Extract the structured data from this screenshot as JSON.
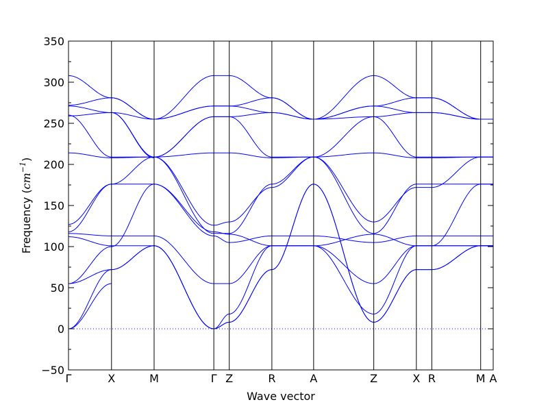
{
  "chart_data": {
    "type": "line",
    "title": "",
    "xlabel": "Wave vector",
    "ylabel_prefix": "Frequency (",
    "ylabel_unit": "cm",
    "ylabel_exp": "−1",
    "ylabel_suffix": ")",
    "ylim": [
      -50,
      350
    ],
    "yticks": [
      -50,
      0,
      50,
      100,
      150,
      200,
      250,
      300,
      350
    ],
    "ytick_labels": [
      "−50",
      "0",
      "50",
      "100",
      "150",
      "200",
      "250",
      "300",
      "350"
    ],
    "grid": false,
    "line_color": "#0000ff",
    "zero_line_color": "#0000ff",
    "xlim": [
      0,
      10.17
    ],
    "high_symmetry_points": [
      {
        "label": "Γ",
        "x": 0.0
      },
      {
        "label": "X",
        "x": 1.03
      },
      {
        "label": "M",
        "x": 2.05
      },
      {
        "label": "Γ",
        "x": 3.48
      },
      {
        "label": "Z",
        "x": 3.85
      },
      {
        "label": "R",
        "x": 4.87
      },
      {
        "label": "A",
        "x": 5.87
      },
      {
        "label": "Z",
        "x": 7.31
      },
      {
        "label": "X",
        "x": 8.33
      },
      {
        "label": "R",
        "x": 8.7
      },
      {
        "label": "M",
        "x": 9.87
      },
      {
        "label": "A",
        "x": 10.17
      }
    ],
    "segments": [
      {
        "from": "Γ",
        "to": "X",
        "x0": 0.0,
        "x1": 1.03,
        "bands": [
          [
            0,
            72
          ],
          [
            0,
            55
          ],
          [
            55,
            72
          ],
          [
            55,
            100
          ],
          [
            112,
            101
          ],
          [
            116,
            113
          ],
          [
            118,
            176
          ],
          [
            127,
            176
          ],
          [
            214,
            208
          ],
          [
            259,
            263
          ],
          [
            260,
            209
          ],
          [
            271,
            263
          ],
          [
            272,
            281
          ],
          [
            308,
            281
          ]
        ]
      },
      {
        "from": "X",
        "to": "M",
        "x0": 1.03,
        "x1": 2.05,
        "bands": [
          [
            72,
            101
          ],
          [
            72,
            101
          ],
          [
            100,
            176
          ],
          [
            101,
            101
          ],
          [
            113,
            113
          ],
          [
            176,
            176
          ],
          [
            176,
            209
          ],
          [
            208,
            209
          ],
          [
            209,
            209
          ],
          [
            263,
            209
          ],
          [
            263,
            208
          ],
          [
            263,
            255
          ],
          [
            281,
            255
          ],
          [
            281,
            255
          ]
        ]
      },
      {
        "from": "M",
        "to": "Γ",
        "x0": 2.05,
        "x1": 3.48,
        "bands": [
          [
            101,
            0
          ],
          [
            101,
            0
          ],
          [
            101,
            0
          ],
          [
            113,
            55
          ],
          [
            176,
            113
          ],
          [
            176,
            118
          ],
          [
            209,
            116
          ],
          [
            209,
            126
          ],
          [
            209,
            214
          ],
          [
            209,
            258
          ],
          [
            209,
            258
          ],
          [
            255,
            271
          ],
          [
            255,
            271
          ],
          [
            255,
            308
          ]
        ]
      },
      {
        "from": "Γ",
        "to": "Z",
        "x0": 3.48,
        "x1": 3.85,
        "bands": [
          [
            0,
            8
          ],
          [
            0,
            8
          ],
          [
            0,
            18
          ],
          [
            55,
            55
          ],
          [
            113,
            105
          ],
          [
            118,
            115
          ],
          [
            116,
            116
          ],
          [
            126,
            130
          ],
          [
            214,
            214
          ],
          [
            258,
            258
          ],
          [
            258,
            258
          ],
          [
            271,
            271
          ],
          [
            271,
            271
          ],
          [
            308,
            308
          ]
        ]
      },
      {
        "from": "Z",
        "to": "R",
        "x0": 3.85,
        "x1": 4.87,
        "bands": [
          [
            8,
            72
          ],
          [
            8,
            72
          ],
          [
            18,
            101
          ],
          [
            55,
            101
          ],
          [
            105,
            113
          ],
          [
            115,
            101
          ],
          [
            116,
            176
          ],
          [
            130,
            172
          ],
          [
            214,
            208
          ],
          [
            258,
            209
          ],
          [
            258,
            263
          ],
          [
            271,
            263
          ],
          [
            271,
            281
          ],
          [
            308,
            281
          ]
        ]
      },
      {
        "from": "R",
        "to": "A",
        "x0": 4.87,
        "x1": 5.87,
        "bands": [
          [
            72,
            176
          ],
          [
            72,
            176
          ],
          [
            101,
            101
          ],
          [
            101,
            101
          ],
          [
            113,
            113
          ],
          [
            101,
            101
          ],
          [
            176,
            209
          ],
          [
            172,
            209
          ],
          [
            208,
            209
          ],
          [
            209,
            209
          ],
          [
            263,
            255
          ],
          [
            263,
            255
          ],
          [
            281,
            255
          ],
          [
            281,
            255
          ]
        ]
      },
      {
        "from": "A",
        "to": "Z",
        "x0": 5.87,
        "x1": 7.31,
        "bands": [
          [
            176,
            8
          ],
          [
            176,
            8
          ],
          [
            101,
            18
          ],
          [
            101,
            55
          ],
          [
            113,
            105
          ],
          [
            101,
            115
          ],
          [
            209,
            116
          ],
          [
            209,
            130
          ],
          [
            209,
            214
          ],
          [
            209,
            258
          ],
          [
            255,
            258
          ],
          [
            255,
            271
          ],
          [
            255,
            271
          ],
          [
            255,
            308
          ]
        ]
      },
      {
        "from": "Z",
        "to": "X",
        "x0": 7.31,
        "x1": 8.33,
        "bands": [
          [
            8,
            72
          ],
          [
            8,
            72
          ],
          [
            18,
            101
          ],
          [
            55,
            101
          ],
          [
            105,
            113
          ],
          [
            115,
            101
          ],
          [
            116,
            176
          ],
          [
            130,
            172
          ],
          [
            214,
            208
          ],
          [
            258,
            209
          ],
          [
            258,
            263
          ],
          [
            271,
            263
          ],
          [
            271,
            281
          ],
          [
            308,
            281
          ]
        ]
      },
      {
        "from": "X",
        "to": "R",
        "x0": 8.33,
        "x1": 8.7,
        "bands": [
          [
            72,
            72
          ],
          [
            72,
            72
          ],
          [
            101,
            101
          ],
          [
            101,
            101
          ],
          [
            113,
            113
          ],
          [
            101,
            101
          ],
          [
            176,
            176
          ],
          [
            172,
            172
          ],
          [
            208,
            208
          ],
          [
            209,
            209
          ],
          [
            263,
            263
          ],
          [
            263,
            263
          ],
          [
            281,
            281
          ],
          [
            281,
            281
          ]
        ]
      },
      {
        "from": "R",
        "to": "M",
        "x0": 8.7,
        "x1": 9.87,
        "bands": [
          [
            72,
            101
          ],
          [
            72,
            101
          ],
          [
            101,
            176
          ],
          [
            101,
            101
          ],
          [
            113,
            113
          ],
          [
            101,
            101
          ],
          [
            176,
            176
          ],
          [
            172,
            209
          ],
          [
            208,
            209
          ],
          [
            209,
            209
          ],
          [
            263,
            255
          ],
          [
            263,
            255
          ],
          [
            281,
            255
          ],
          [
            281,
            255
          ]
        ]
      },
      {
        "from": "M",
        "to": "A",
        "x0": 9.87,
        "x1": 10.17,
        "bands": [
          [
            101,
            101
          ],
          [
            101,
            101
          ],
          [
            176,
            176
          ],
          [
            101,
            101
          ],
          [
            113,
            113
          ],
          [
            101,
            101
          ],
          [
            176,
            176
          ],
          [
            209,
            209
          ],
          [
            209,
            209
          ],
          [
            209,
            209
          ],
          [
            255,
            255
          ],
          [
            255,
            255
          ],
          [
            255,
            255
          ],
          [
            255,
            255
          ]
        ]
      }
    ]
  }
}
